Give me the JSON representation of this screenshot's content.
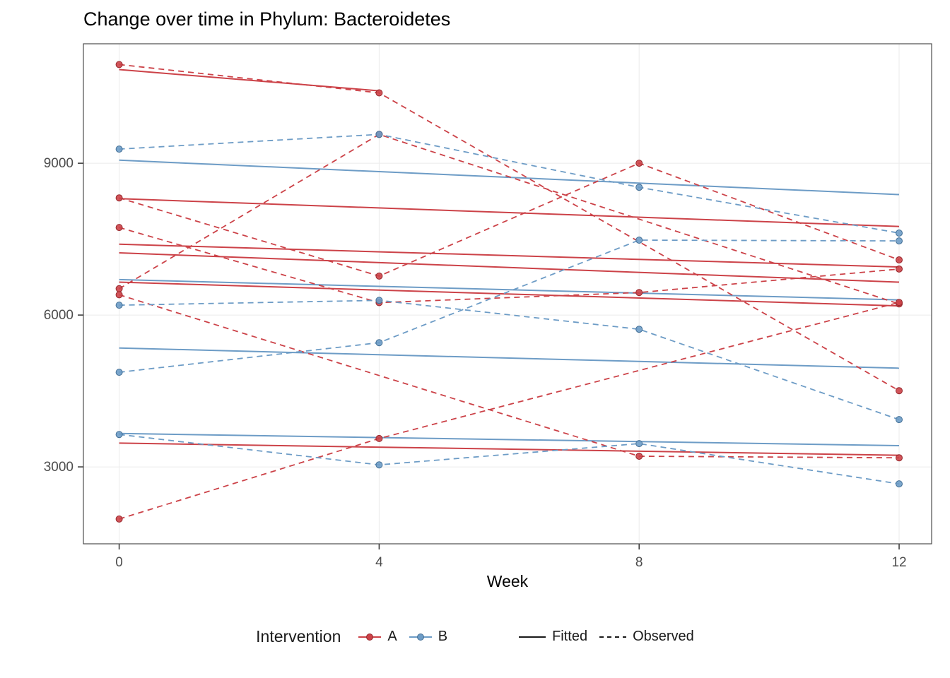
{
  "page": {
    "background": "#ffffff"
  },
  "chart_data": {
    "type": "line",
    "title": "Change over time in Phylum: Bacteroidetes",
    "xlabel": "Week",
    "ylabel": "",
    "x_ticks": [
      0,
      4,
      8,
      12
    ],
    "y_ticks": [
      3000,
      6000,
      9000
    ],
    "xlim": [
      -0.55,
      12.5
    ],
    "ylim": [
      1480,
      11360
    ],
    "grid": true,
    "grid_color": "#ebebeb",
    "border_color": "#4d4d4d",
    "tick_color": "#333333",
    "tick_label_color": "#4d4d4d",
    "colors": {
      "A": "#CC4248",
      "B": "#6D9CC6",
      "A_stroke": "#96262B",
      "B_stroke": "#436F96",
      "linetype_key": "#1a1a1a"
    },
    "legend": {
      "intervention_label": "Intervention",
      "groups": [
        {
          "name": "A",
          "color": "#CC4248"
        },
        {
          "name": "B",
          "color": "#6D9CC6"
        }
      ],
      "linetypes": [
        {
          "name": "Fitted",
          "dash": "solid"
        },
        {
          "name": "Observed",
          "dash": "dashed"
        }
      ]
    },
    "subjects": [
      {
        "id": "A1",
        "group": "A",
        "observed": [
          [
            0,
            10950
          ],
          [
            4,
            10390
          ],
          [
            12,
            4505
          ]
        ],
        "fitted": [
          [
            0,
            10850
          ],
          [
            4,
            10430
          ]
        ]
      },
      {
        "id": "A2",
        "group": "A",
        "observed": [
          [
            0,
            8315
          ],
          [
            4,
            6770
          ],
          [
            8,
            9000
          ],
          [
            12,
            7090
          ]
        ],
        "fitted": [
          [
            0,
            8300
          ],
          [
            12,
            7750
          ]
        ]
      },
      {
        "id": "A3",
        "group": "A",
        "observed": [
          [
            0,
            7730
          ],
          [
            4,
            6245
          ],
          [
            8,
            6445
          ],
          [
            12,
            6910
          ]
        ],
        "fitted": [
          [
            0,
            7230
          ],
          [
            12,
            6650
          ]
        ]
      },
      {
        "id": "A4",
        "group": "A",
        "observed": [
          [
            0,
            6520
          ],
          [
            4,
            9570
          ],
          [
            12,
            6220
          ]
        ],
        "fitted": [
          [
            0,
            7400
          ],
          [
            12,
            6950
          ]
        ]
      },
      {
        "id": "A5",
        "group": "A",
        "observed": [
          [
            0,
            6400
          ],
          [
            8,
            3210
          ],
          [
            12,
            3180
          ]
        ],
        "fitted": [
          [
            0,
            6650
          ],
          [
            12,
            6180
          ]
        ]
      },
      {
        "id": "A6",
        "group": "A",
        "observed": [
          [
            0,
            1970
          ],
          [
            4,
            3560
          ],
          [
            12,
            6250
          ]
        ],
        "fitted": [
          [
            0,
            3470
          ],
          [
            12,
            3230
          ]
        ]
      },
      {
        "id": "B1",
        "group": "B",
        "observed": [
          [
            0,
            9280
          ],
          [
            4,
            9570
          ],
          [
            8,
            8525
          ],
          [
            12,
            7620
          ]
        ],
        "fitted": [
          [
            0,
            9060
          ],
          [
            12,
            8380
          ]
        ]
      },
      {
        "id": "B2",
        "group": "B",
        "observed": [
          [
            0,
            6195
          ],
          [
            4,
            6290
          ],
          [
            8,
            5720
          ],
          [
            12,
            3935
          ]
        ],
        "fitted": [
          [
            0,
            5350
          ],
          [
            12,
            4950
          ]
        ]
      },
      {
        "id": "B3",
        "group": "B",
        "observed": [
          [
            0,
            4870
          ],
          [
            4,
            5455
          ],
          [
            8,
            7480
          ],
          [
            12,
            7465
          ]
        ],
        "fitted": [
          [
            0,
            6700
          ],
          [
            12,
            6300
          ]
        ]
      },
      {
        "id": "B4",
        "group": "B",
        "observed": [
          [
            0,
            3640
          ],
          [
            4,
            3040
          ],
          [
            8,
            3460
          ],
          [
            12,
            2665
          ]
        ],
        "fitted": [
          [
            0,
            3660
          ],
          [
            12,
            3420
          ]
        ]
      }
    ]
  }
}
